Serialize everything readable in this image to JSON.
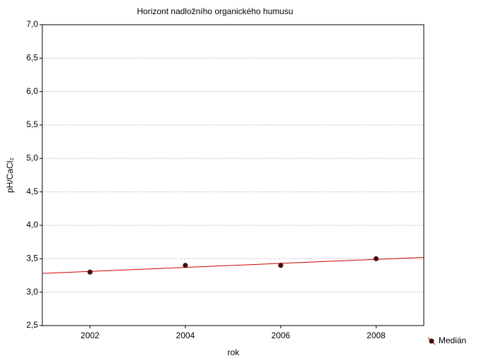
{
  "chart_data": {
    "type": "scatter",
    "title": "Horizont nadložního organického humusu",
    "x_label": "rok",
    "y_label": "pH/CaCl₂",
    "series": [
      {
        "name": "Medián",
        "color": "#5a0000",
        "x": [
          2002,
          2004,
          2006,
          2008
        ],
        "values": [
          3.3,
          3.4,
          3.4,
          3.5
        ]
      }
    ],
    "xlim": [
      2001,
      2009
    ],
    "xticks": [
      2002,
      2004,
      2006,
      2008
    ],
    "ylim": [
      2.5,
      7.0
    ],
    "yticks": [
      {
        "value": 2.5,
        "label": "2,5"
      },
      {
        "value": 3.0,
        "label": "3,0"
      },
      {
        "value": 3.5,
        "label": "3,5"
      },
      {
        "value": 4.0,
        "label": "4,0"
      },
      {
        "value": 4.5,
        "label": "4,5"
      },
      {
        "value": 5.0,
        "label": "5,0"
      },
      {
        "value": 5.5,
        "label": "5,5"
      },
      {
        "value": 6.0,
        "label": "6,0"
      },
      {
        "value": 6.5,
        "label": "6,5"
      },
      {
        "value": 7.0,
        "label": "7,0"
      }
    ],
    "grid": true,
    "trendline": "linear",
    "trendline_color": "#cc0000",
    "legend": "bottom-right"
  }
}
